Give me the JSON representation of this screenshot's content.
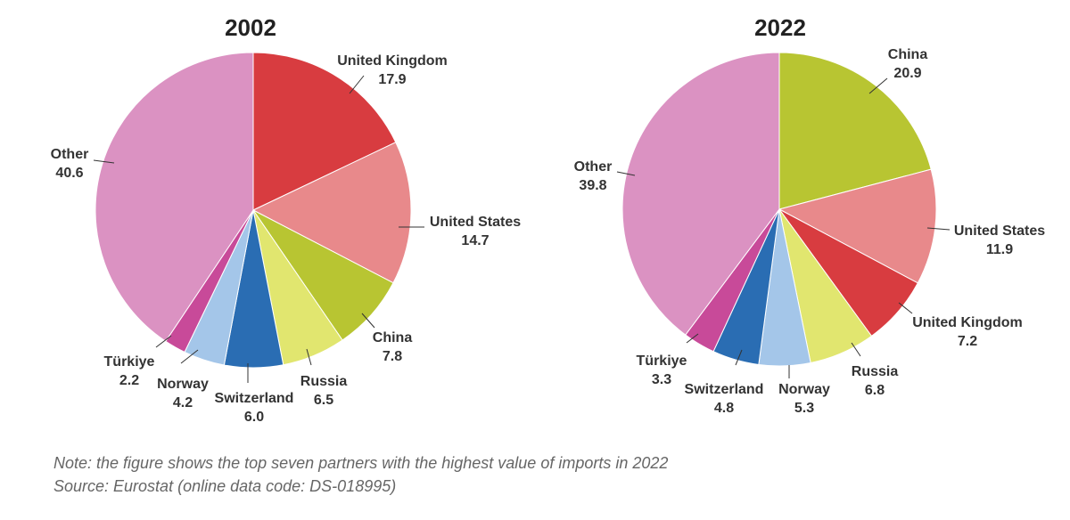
{
  "chart_data": [
    {
      "type": "pie",
      "title": "2002",
      "unit": "%",
      "slices": [
        {
          "label": "United Kingdom",
          "value": 17.9,
          "color": "#d83c40"
        },
        {
          "label": "United States",
          "value": 14.7,
          "color": "#e8898b"
        },
        {
          "label": "China",
          "value": 7.8,
          "color": "#b8c532"
        },
        {
          "label": "Russia",
          "value": 6.5,
          "color": "#e1e66f"
        },
        {
          "label": "Switzerland",
          "value": 6.0,
          "color": "#2a6db3"
        },
        {
          "label": "Norway",
          "value": 4.2,
          "color": "#a4c6e9"
        },
        {
          "label": "Türkiye",
          "value": 2.2,
          "color": "#c84a99"
        },
        {
          "label": "Other",
          "value": 40.6,
          "color": "#db92c2"
        }
      ]
    },
    {
      "type": "pie",
      "title": "2022",
      "unit": "%",
      "slices": [
        {
          "label": "China",
          "value": 20.9,
          "color": "#b8c532"
        },
        {
          "label": "United States",
          "value": 11.9,
          "color": "#e8898b"
        },
        {
          "label": "United Kingdom",
          "value": 7.2,
          "color": "#d83c40"
        },
        {
          "label": "Russia",
          "value": 6.8,
          "color": "#e1e66f"
        },
        {
          "label": "Norway",
          "value": 5.3,
          "color": "#a4c6e9"
        },
        {
          "label": "Switzerland",
          "value": 4.8,
          "color": "#2a6db3"
        },
        {
          "label": "Türkiye",
          "value": 3.3,
          "color": "#c84a99"
        },
        {
          "label": "Other",
          "value": 39.8,
          "color": "#db92c2"
        }
      ]
    }
  ],
  "footnote": {
    "note": "Note: the figure shows the top seven partners with the highest value of imports in 2022",
    "source": "Source: Eurostat (online data code: DS-018995)"
  }
}
